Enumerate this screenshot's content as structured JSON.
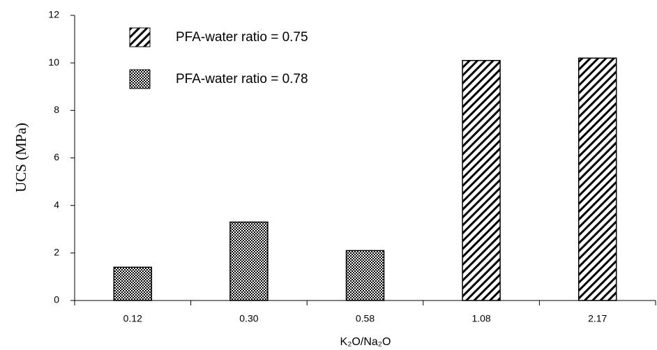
{
  "chart_data": {
    "type": "bar",
    "x_label": "K₂O/Na₂O",
    "y_label": "UCS (MPa)",
    "categories": [
      "0.12",
      "0.30",
      "0.58",
      "1.08",
      "2.17"
    ],
    "series": [
      {
        "name": "PFA-water ratio = 0.75",
        "color": "#000000",
        "pattern": "hatch",
        "values": [
          null,
          null,
          null,
          10.1,
          10.2
        ]
      },
      {
        "name": "PFA-water ratio = 0.78",
        "color": "#000000",
        "pattern": "checker",
        "values": [
          1.4,
          3.3,
          2.1,
          null,
          null
        ]
      }
    ],
    "ylim": [
      0,
      12
    ],
    "yticks": [
      0,
      2,
      4,
      6,
      8,
      10,
      12
    ],
    "grid": false,
    "legend": "upper left"
  }
}
